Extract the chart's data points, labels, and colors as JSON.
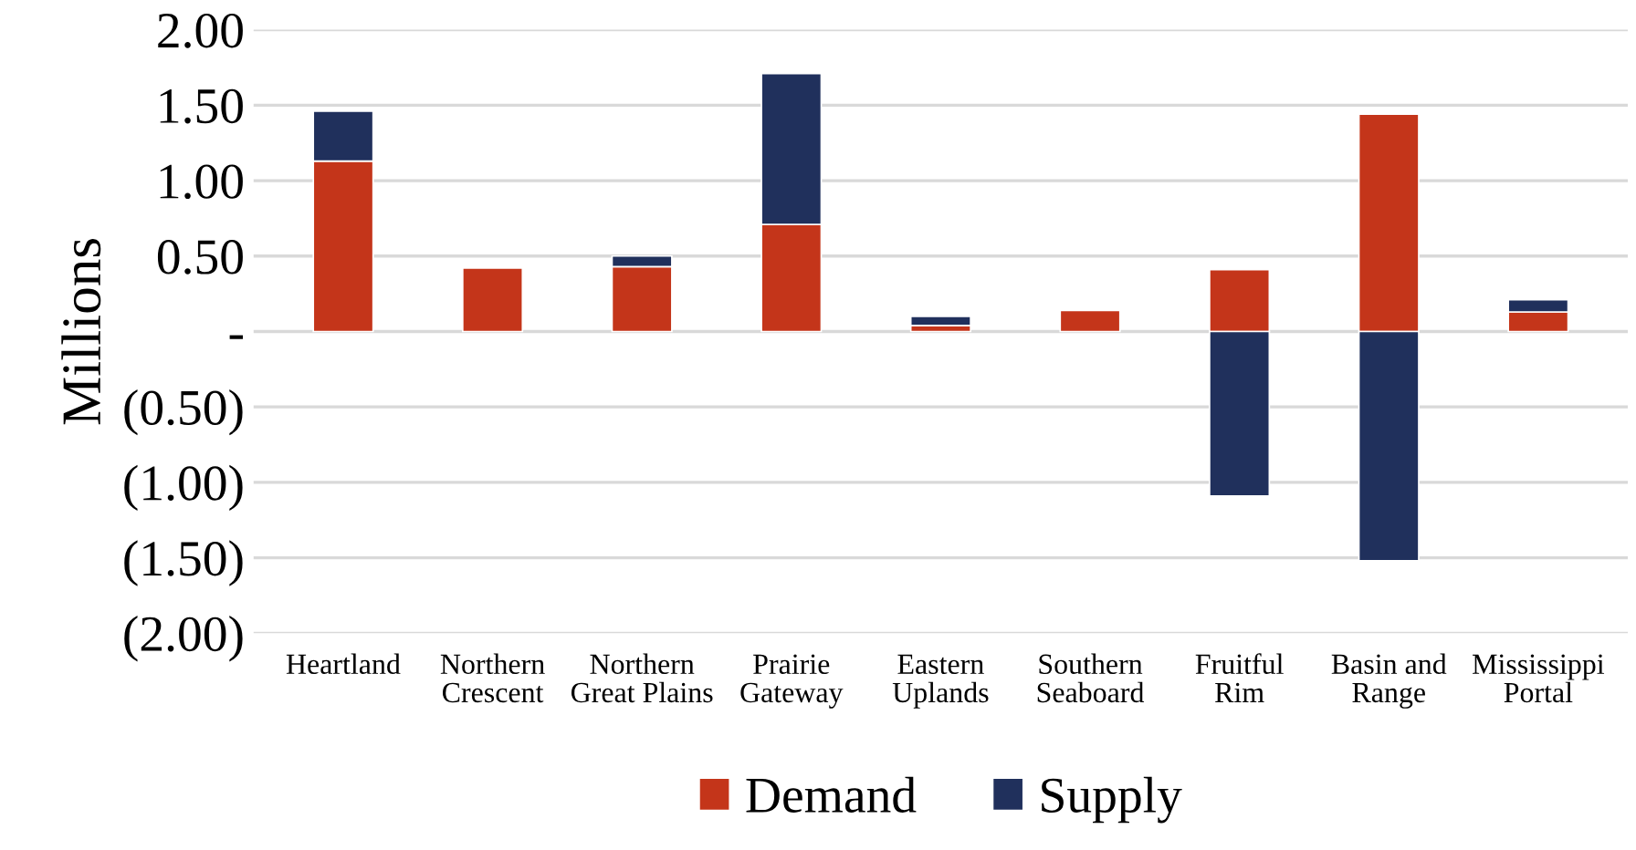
{
  "chart_data": {
    "type": "bar",
    "stacked": true,
    "ylabel": "Millions",
    "categories": [
      "Heartland",
      "Northern\nCrescent",
      "Northern\nGreat Plains",
      "Prairie\nGateway",
      "Eastern\nUplands",
      "Southern\nSeaboard",
      "Fruitful\nRim",
      "Basin and\nRange",
      "Mississippi\nPortal"
    ],
    "series": [
      {
        "name": "Demand",
        "color": "#c4351a",
        "values": [
          1.13,
          0.42,
          0.43,
          0.71,
          0.04,
          0.14,
          0.41,
          1.44,
          0.13
        ]
      },
      {
        "name": "Supply",
        "color": "#20305c",
        "values": [
          0.33,
          null,
          0.07,
          1.0,
          0.06,
          null,
          -1.09,
          -1.52,
          0.08
        ]
      }
    ],
    "ylim": [
      -2,
      2
    ],
    "yticks": [
      {
        "value": -2,
        "label": "(2.00)"
      },
      {
        "value": -1.5,
        "label": "(1.50)"
      },
      {
        "value": -1,
        "label": "(1.00)"
      },
      {
        "value": -0.5,
        "label": "(0.50)"
      },
      {
        "value": 0,
        "label": "-"
      },
      {
        "value": 0.5,
        "label": "0.50"
      },
      {
        "value": 1,
        "label": "1.00"
      },
      {
        "value": 1.5,
        "label": "1.50"
      },
      {
        "value": 2,
        "label": "2.00"
      }
    ],
    "grid": "y",
    "legend": "bottom"
  }
}
